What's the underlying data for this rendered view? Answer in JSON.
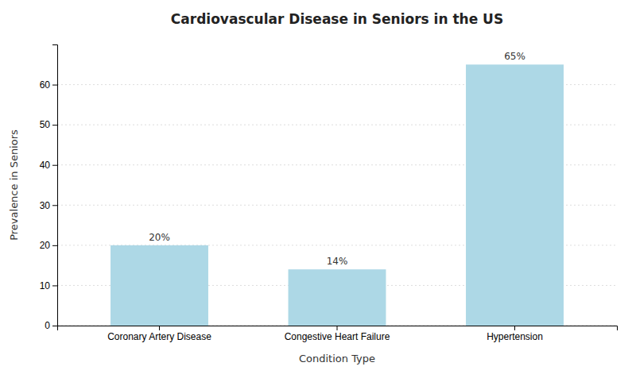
{
  "chart_data": {
    "type": "bar",
    "title": "Cardiovascular Disease in Seniors in the US",
    "categories": [
      "Coronary Artery Disease",
      "Congestive Heart Failure",
      "Hypertension"
    ],
    "values": [
      20,
      14,
      65
    ],
    "value_labels": [
      "20%",
      "14%",
      "65%"
    ],
    "data_labels": true,
    "color": "#add8e6",
    "xlabel": "Condition Type",
    "ylabel": "Prevalence in Seniors",
    "ylim": [
      0,
      70
    ],
    "yticks": [
      0,
      10,
      20,
      30,
      40,
      50,
      60
    ],
    "grid": true
  }
}
